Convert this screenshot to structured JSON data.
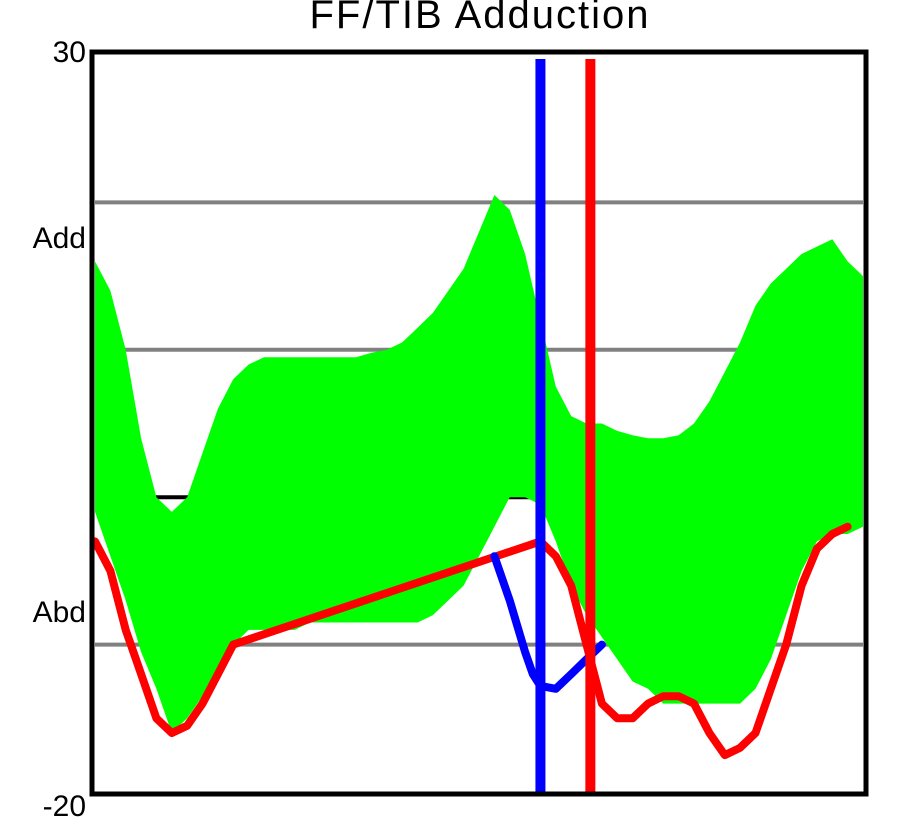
{
  "chart_data": {
    "type": "area",
    "title": "FF/TIB Adduction",
    "xlabel": "",
    "ylabel": "",
    "ylim": [
      -20,
      30
    ],
    "xlim": [
      0,
      100
    ],
    "y_tick_labels": [
      "30",
      "-20"
    ],
    "y_region_labels": [
      {
        "text": "Add",
        "y": 17
      },
      {
        "text": "Abd",
        "y": -8
      }
    ],
    "gridlines_y": [
      20,
      10,
      -10
    ],
    "zero_line_y": 0,
    "band": {
      "color": "#00ff00",
      "x": [
        0,
        2,
        4,
        6,
        8,
        10,
        12,
        14,
        16,
        18,
        20,
        22,
        24,
        26,
        28,
        30,
        32,
        34,
        36,
        38,
        40,
        42,
        44,
        46,
        48,
        50,
        52,
        54,
        56,
        58,
        60,
        62,
        64,
        66,
        68,
        70,
        72,
        74,
        76,
        78,
        80,
        82,
        84,
        86,
        88,
        90,
        92,
        94,
        96,
        98,
        100
      ],
      "upper": [
        16,
        14,
        10,
        4,
        0,
        -1,
        0,
        3,
        6,
        8,
        9,
        9.5,
        9.5,
        9.5,
        9.5,
        9.5,
        9.5,
        9.5,
        9.8,
        10,
        10.5,
        11.5,
        12.5,
        14,
        15.5,
        18,
        20.5,
        19.5,
        16.5,
        12,
        7.5,
        5.5,
        5,
        5,
        4.5,
        4.2,
        4,
        4,
        4.2,
        5,
        6.5,
        8.5,
        10.5,
        13,
        14.5,
        15.5,
        16.5,
        17,
        17.5,
        16,
        15
      ],
      "lower": [
        -1,
        -4,
        -7,
        -10.5,
        -13,
        -16,
        -15,
        -13.5,
        -11.5,
        -10,
        -9,
        -9,
        -9,
        -9,
        -8.5,
        -8.5,
        -8.5,
        -8.5,
        -8.5,
        -8.5,
        -8.5,
        -8.5,
        -8,
        -7,
        -6,
        -4,
        -2,
        0,
        0,
        -0.5,
        -3,
        -6,
        -8,
        -9.5,
        -11,
        -12.5,
        -13,
        -14,
        -14,
        -14,
        -14,
        -14,
        -14,
        -13,
        -11,
        -8,
        -5,
        -3,
        -2.5,
        -2.5,
        -2
      ]
    },
    "series": [
      {
        "color": "#ff0000",
        "x": [
          0,
          2,
          4,
          6,
          8,
          10,
          12,
          14,
          16,
          18,
          58,
          60,
          62,
          64,
          66,
          68,
          70,
          72,
          74,
          76,
          78,
          80,
          82,
          84,
          86,
          88,
          90,
          92,
          94,
          96,
          98
        ],
        "y": [
          -3,
          -5,
          -9,
          -12,
          -15,
          -16,
          -15.5,
          -14,
          -12,
          -10,
          -3,
          -4,
          -6,
          -10,
          -14,
          -15,
          -15,
          -14,
          -13.5,
          -13.5,
          -14,
          -16,
          -17.5,
          -17,
          -16,
          -13,
          -10,
          -6,
          -3.5,
          -2.5,
          -2
        ]
      },
      {
        "color": "#0000ff",
        "x": [
          52,
          54,
          56,
          57,
          58,
          60,
          62,
          64,
          66
        ],
        "y": [
          -4,
          -7,
          -10.5,
          -12,
          -12.8,
          -13,
          -12,
          -11,
          -10
        ]
      }
    ],
    "vertical_markers": [
      {
        "color": "#0000ff",
        "x": 58
      },
      {
        "color": "#ff0000",
        "x": 64.5
      }
    ]
  }
}
